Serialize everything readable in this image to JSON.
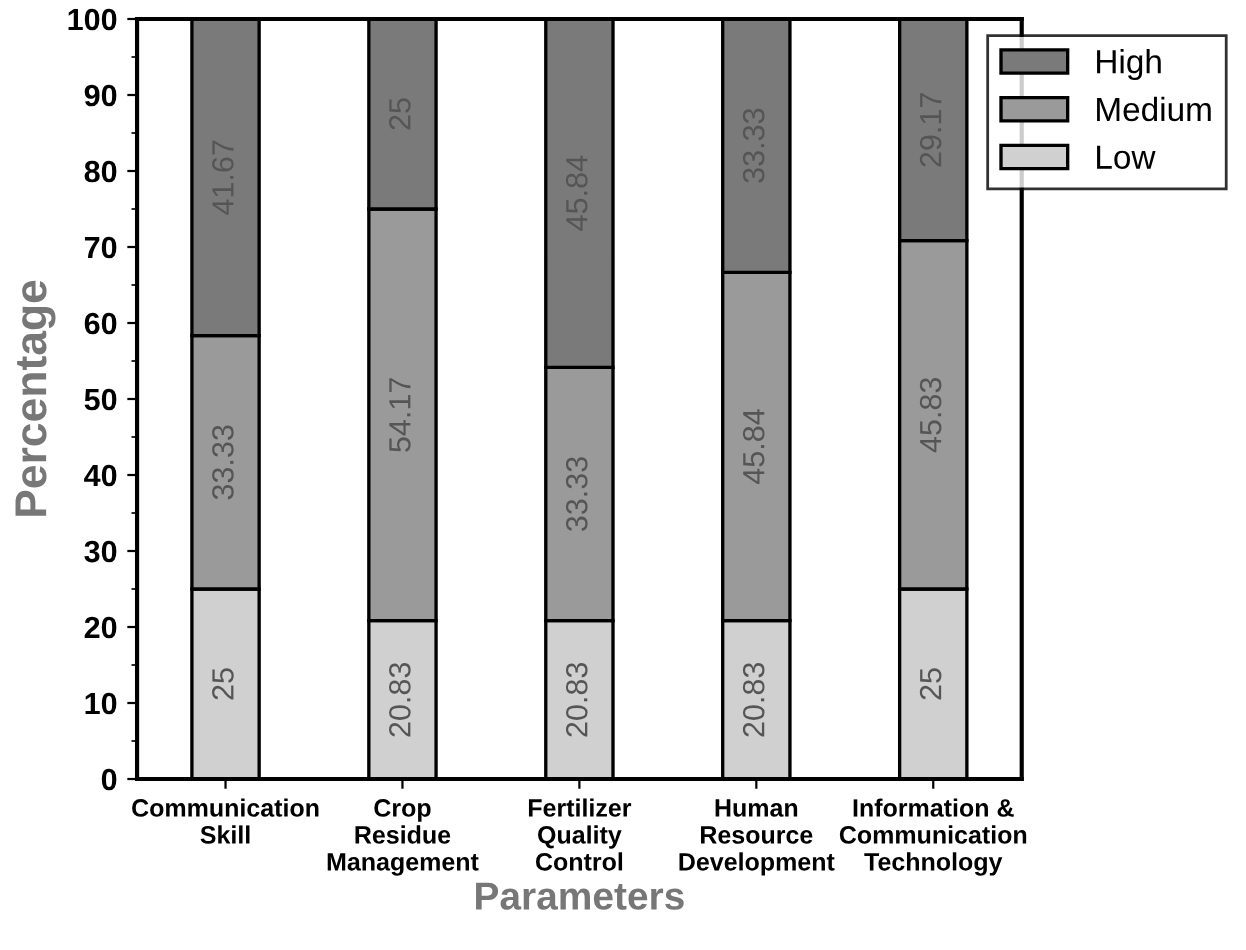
{
  "chart_data": {
    "type": "bar",
    "stacked": true,
    "xlabel": "Parameters",
    "ylabel": "Percentage",
    "categories": [
      "Communication\nSkill",
      "Crop\nResidue\nManagement",
      "Fertilizer\nQuality\nControl",
      "Human\nResource\nDevelopment",
      "Information &\nCommunication\nTechnology"
    ],
    "series": [
      {
        "name": "Low",
        "color": "#d0d0d0",
        "values": [
          25,
          20.83,
          20.83,
          20.83,
          25
        ]
      },
      {
        "name": "Medium",
        "color": "#9a9a9a",
        "values": [
          33.33,
          54.17,
          33.33,
          45.84,
          45.83
        ]
      },
      {
        "name": "High",
        "color": "#7a7a7a",
        "values": [
          41.67,
          25,
          45.84,
          33.33,
          29.17
        ]
      }
    ],
    "ylim": [
      0,
      100
    ],
    "yticks": [
      0,
      10,
      20,
      30,
      40,
      50,
      60,
      70,
      80,
      90,
      100
    ],
    "data_labels": true,
    "legend": "top right",
    "grid": false
  }
}
